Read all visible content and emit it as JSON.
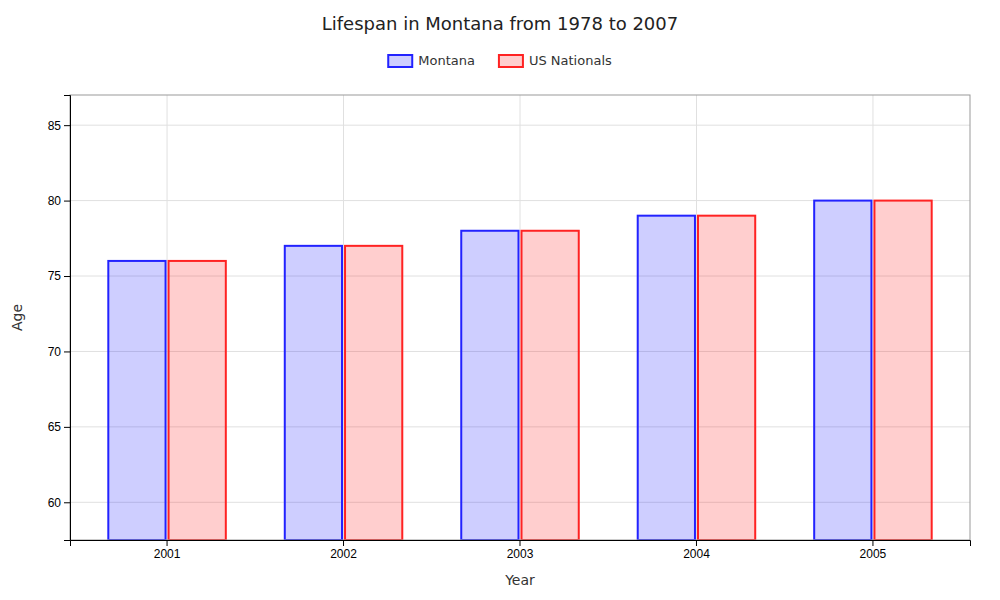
{
  "chart_data": {
    "type": "bar",
    "title": "Lifespan in Montana from 1978 to 2007",
    "xlabel": "Year",
    "ylabel": "Age",
    "categories": [
      "2001",
      "2002",
      "2003",
      "2004",
      "2005"
    ],
    "series": [
      {
        "name": "Montana",
        "color": "#2222ff",
        "values": [
          76,
          77,
          78,
          79,
          80
        ]
      },
      {
        "name": "US Nationals",
        "color": "#ff2222",
        "values": [
          76,
          77,
          78,
          79,
          80
        ]
      }
    ],
    "ylim": [
      57.5,
      87
    ],
    "yticks": [
      60,
      65,
      70,
      75,
      80,
      85
    ],
    "grid": true,
    "legend": "top"
  }
}
